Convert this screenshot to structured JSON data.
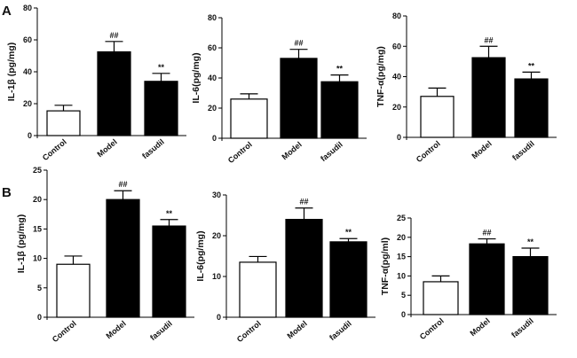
{
  "panels": [
    {
      "letter": "A"
    },
    {
      "letter": "B"
    }
  ],
  "colors": {
    "filled": "#000000",
    "open": "#ffffff",
    "stroke": "#000000"
  },
  "chart_data": [
    {
      "type": "bar",
      "panel": "A",
      "categories": [
        "Control",
        "Model",
        "fasudil"
      ],
      "values": [
        15.5,
        52.5,
        34
      ],
      "errors": [
        3.5,
        6.5,
        5
      ],
      "bar_fill": [
        "open",
        "filled",
        "filled"
      ],
      "annotations": [
        "",
        "##",
        "**"
      ],
      "ylabel": "IL-1β (pg/mg)",
      "ylim": [
        0,
        80
      ],
      "yticks": [
        0,
        20,
        40,
        60,
        80
      ]
    },
    {
      "type": "bar",
      "panel": "A",
      "categories": [
        "Control",
        "Model",
        "fasudil"
      ],
      "values": [
        26,
        53,
        37.5
      ],
      "errors": [
        3.5,
        6,
        4.5
      ],
      "bar_fill": [
        "open",
        "filled",
        "filled"
      ],
      "annotations": [
        "",
        "##",
        "**"
      ],
      "ylabel": "IL-6(pg/mg)",
      "ylim": [
        0,
        80
      ],
      "yticks": [
        0,
        20,
        40,
        60,
        80
      ]
    },
    {
      "type": "bar",
      "panel": "A",
      "categories": [
        "Control",
        "Model",
        "fasudil"
      ],
      "values": [
        27,
        52.5,
        38.5
      ],
      "errors": [
        5.5,
        7.5,
        4.5
      ],
      "bar_fill": [
        "open",
        "filled",
        "filled"
      ],
      "annotations": [
        "",
        "##",
        "**"
      ],
      "ylabel": "TNF-α(pg/mg)",
      "ylim": [
        0,
        80
      ],
      "yticks": [
        0,
        20,
        40,
        60,
        80
      ]
    },
    {
      "type": "bar",
      "panel": "B",
      "categories": [
        "Control",
        "Model",
        "fasudil"
      ],
      "values": [
        9,
        20,
        15.5
      ],
      "errors": [
        1.4,
        1.5,
        1.1
      ],
      "bar_fill": [
        "open",
        "filled",
        "filled"
      ],
      "annotations": [
        "",
        "##",
        "**"
      ],
      "ylabel": "IL-1β (pg/mg)",
      "ylim": [
        0,
        25
      ],
      "yticks": [
        0,
        5,
        10,
        15,
        20,
        25
      ]
    },
    {
      "type": "bar",
      "panel": "B",
      "categories": [
        "Control",
        "Model",
        "fasudil"
      ],
      "values": [
        13.5,
        24,
        18.5
      ],
      "errors": [
        1.4,
        2.8,
        0.8
      ],
      "bar_fill": [
        "open",
        "filled",
        "filled"
      ],
      "annotations": [
        "",
        "##",
        "**"
      ],
      "ylabel": "IL-6(pg/mg)",
      "ylim": [
        0,
        30
      ],
      "yticks": [
        0,
        10,
        20,
        30
      ]
    },
    {
      "type": "bar",
      "panel": "B",
      "categories": [
        "Control",
        "Model",
        "fasudil"
      ],
      "values": [
        8.5,
        18.3,
        15
      ],
      "errors": [
        1.5,
        1.3,
        2.2
      ],
      "bar_fill": [
        "open",
        "filled",
        "filled"
      ],
      "annotations": [
        "",
        "##",
        "**"
      ],
      "ylabel": "TNF-α(pg/ml)",
      "ylim": [
        0,
        25
      ],
      "yticks": [
        0,
        5,
        10,
        15,
        20,
        25
      ]
    }
  ]
}
